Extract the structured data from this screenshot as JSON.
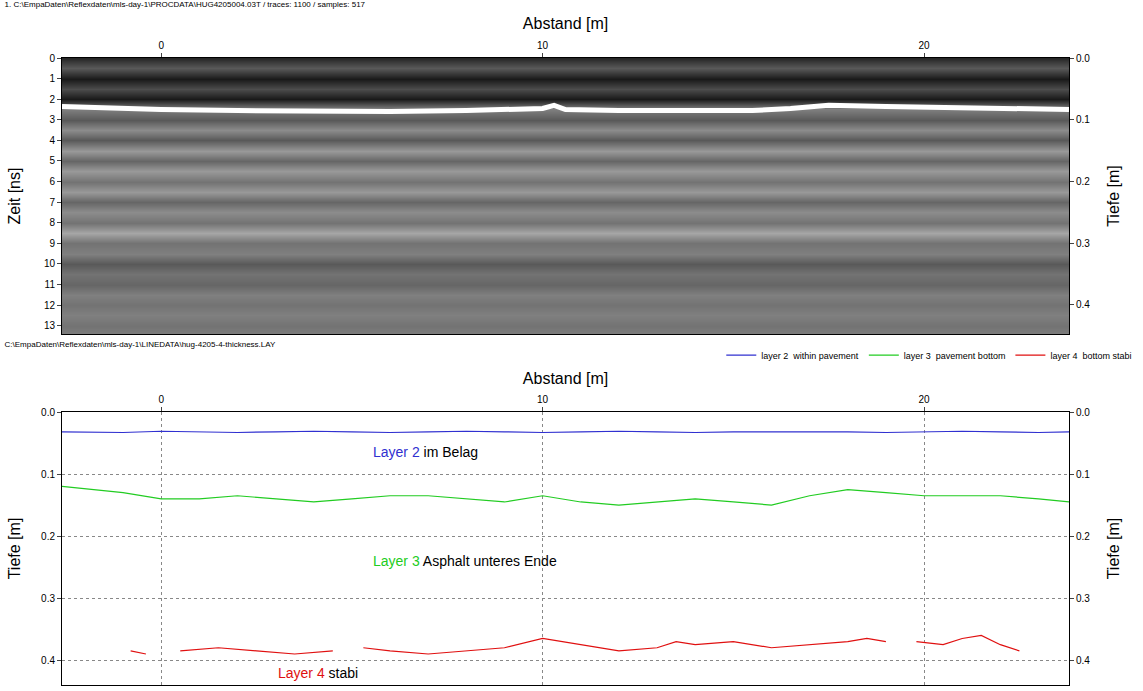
{
  "chart_data": [
    {
      "type": "heatmap",
      "title": "1. C:\\EmpaDaten\\Reflexdaten\\mls-day-1\\PROCDATA\\HUG4205004.03T / traces: 1100 / samples: 517",
      "x_label": "Abstand [m]",
      "y_label": "Zeit [ns]",
      "y2_label": "Tiefe [m]",
      "xlim": [
        -2.6,
        23.8
      ],
      "xticks": [
        0,
        10,
        20
      ],
      "ylim": [
        13.4,
        0
      ],
      "yticks": [
        0,
        1,
        2,
        3,
        4,
        5,
        6,
        7,
        8,
        9,
        10,
        11,
        12,
        13
      ],
      "y2lim": [
        0.447,
        0
      ],
      "y2ticks": [
        {
          "value": 0,
          "label": "0.0"
        },
        0.1,
        0.2,
        0.3,
        0.4
      ],
      "zlim": [
        0,
        1
      ],
      "rows": {
        "time": [
          0,
          0.5,
          1,
          1.5,
          2,
          2.5,
          3,
          3.5,
          4,
          4.5,
          5,
          5.5,
          6,
          6.5,
          7,
          7.5,
          8,
          8.5,
          9,
          9.5,
          10,
          10.5,
          11,
          11.5,
          12,
          12.5,
          13,
          13.5
        ],
        "intensity": [
          0.15,
          0.35,
          0.1,
          0.3,
          0.1,
          0.5,
          0.35,
          0.55,
          0.35,
          0.6,
          0.4,
          0.6,
          0.45,
          0.6,
          0.4,
          0.55,
          0.45,
          0.65,
          0.45,
          0.5,
          0.35,
          0.45,
          0.4,
          0.5,
          0.45,
          0.5,
          0.45,
          0.5
        ]
      },
      "reflection": {
        "color": "#ffffff",
        "x": [
          -2.6,
          -1,
          0,
          2,
          4,
          6,
          8,
          9.5,
          10,
          10.3,
          10.6,
          12,
          14,
          15.5,
          16.5,
          17.5,
          19,
          21,
          23,
          23.8
        ],
        "time": [
          2.35,
          2.45,
          2.5,
          2.55,
          2.6,
          2.6,
          2.55,
          2.5,
          2.45,
          2.3,
          2.5,
          2.55,
          2.55,
          2.55,
          2.45,
          2.3,
          2.35,
          2.4,
          2.45,
          2.5
        ]
      },
      "grid": false
    },
    {
      "type": "line",
      "title": "C:\\EmpaDaten\\Reflexdaten\\mls-day-1\\LINEDATA\\hug-4205-4-thickness.LAY",
      "x_label": "Abstand [m]",
      "y_label": "Tiefe [m]",
      "y2_label": "Tiefe [m]",
      "xlim": [
        -2.6,
        23.8
      ],
      "xticks": [
        0,
        10,
        20
      ],
      "ylim": [
        0.44,
        0
      ],
      "yticks": [
        {
          "value": 0,
          "label": "0.0"
        },
        0.1,
        0.2,
        0.3,
        0.4
      ],
      "y2lim": [
        0.44,
        0
      ],
      "y2ticks": [
        {
          "value": 0,
          "label": "0.0"
        },
        0.1,
        0.2,
        0.3,
        0.4
      ],
      "grid": true,
      "legend": "top right",
      "series": [
        {
          "name": "layer 2  within pavement",
          "color": "#3030d0",
          "x": [
            -2.6,
            -1,
            0,
            1,
            2,
            3,
            4,
            5,
            6,
            7,
            8,
            9,
            10,
            11,
            12,
            13,
            14,
            15,
            16,
            17,
            18,
            19,
            20,
            21,
            22,
            23,
            23.8
          ],
          "values": [
            0.032,
            0.033,
            0.031,
            0.032,
            0.033,
            0.032,
            0.031,
            0.032,
            0.033,
            0.032,
            0.031,
            0.032,
            0.033,
            0.032,
            0.031,
            0.032,
            0.033,
            0.032,
            0.032,
            0.031,
            0.032,
            0.033,
            0.032,
            0.031,
            0.032,
            0.033,
            0.032
          ]
        },
        {
          "name": "layer 3  pavement bottom",
          "color": "#22cc22",
          "x": [
            -2.6,
            -1,
            0,
            1,
            2,
            3,
            4,
            5,
            6,
            7,
            8,
            9,
            10,
            11,
            12,
            13,
            14,
            15,
            16,
            17,
            18,
            19,
            20,
            21,
            22,
            23,
            23.8
          ],
          "values": [
            0.12,
            0.13,
            0.14,
            0.14,
            0.135,
            0.14,
            0.145,
            0.14,
            0.135,
            0.135,
            0.14,
            0.145,
            0.135,
            0.145,
            0.15,
            0.145,
            0.14,
            0.145,
            0.15,
            0.135,
            0.125,
            0.13,
            0.135,
            0.135,
            0.135,
            0.14,
            0.145
          ]
        },
        {
          "name": "layer 4  bottom stabi",
          "color": "#e01010",
          "x": [
            -0.8,
            -0.4,
            -0.2,
            0.5,
            1.5,
            2.5,
            3.5,
            4.5,
            5.0,
            5.3,
            6,
            7,
            8,
            9,
            10,
            11,
            12,
            13,
            13.5,
            14,
            15,
            16,
            17,
            18,
            18.5,
            19,
            19.6,
            19.8,
            20.5,
            21,
            21.5,
            22,
            22.5
          ],
          "values": [
            0.385,
            0.39,
            null,
            0.385,
            0.38,
            0.385,
            0.39,
            0.385,
            null,
            0.38,
            0.385,
            0.39,
            0.385,
            0.38,
            0.365,
            0.375,
            0.385,
            0.38,
            0.37,
            0.375,
            0.37,
            0.38,
            0.375,
            0.37,
            0.365,
            0.37,
            null,
            0.37,
            0.375,
            0.365,
            0.36,
            0.375,
            0.385
          ]
        }
      ],
      "annotations": [
        {
          "label": "Layer 2",
          "text": "im Belag",
          "color": "#3030d0",
          "x": 5.5,
          "y": 0.065
        },
        {
          "label": "Layer 3",
          "text": "Asphalt unteres Ende",
          "color": "#22cc22",
          "x": 5.5,
          "y": 0.24
        },
        {
          "label": "Layer 4",
          "text": "stabi",
          "color": "#e01010",
          "x": 3.0,
          "y": 0.42
        }
      ]
    }
  ]
}
